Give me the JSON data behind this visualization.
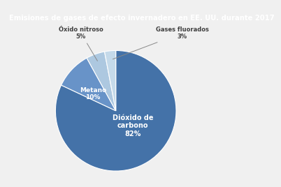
{
  "title": "Emisiones de gases de efecto invernadero en EE. UU. durante 2017",
  "title_bg_color": "#6aaa5f",
  "title_text_color": "#ffffff",
  "slices": [
    82,
    10,
    5,
    3
  ],
  "colors": [
    "#4472a8",
    "#6893c8",
    "#adc8e0",
    "#c5daea"
  ],
  "startangle": 90,
  "bg_color": "#f0f0f0",
  "label_co2": "Dióxido de\ncarbono\n82%",
  "label_methane": "Metano\n10%",
  "label_nitrous": "Óxido nitroso\n5%",
  "label_fluor": "Gases fluorados\n3%",
  "title_fontsize": 7.2,
  "inside_label_color": "#ffffff",
  "outside_label_color": "#404040"
}
